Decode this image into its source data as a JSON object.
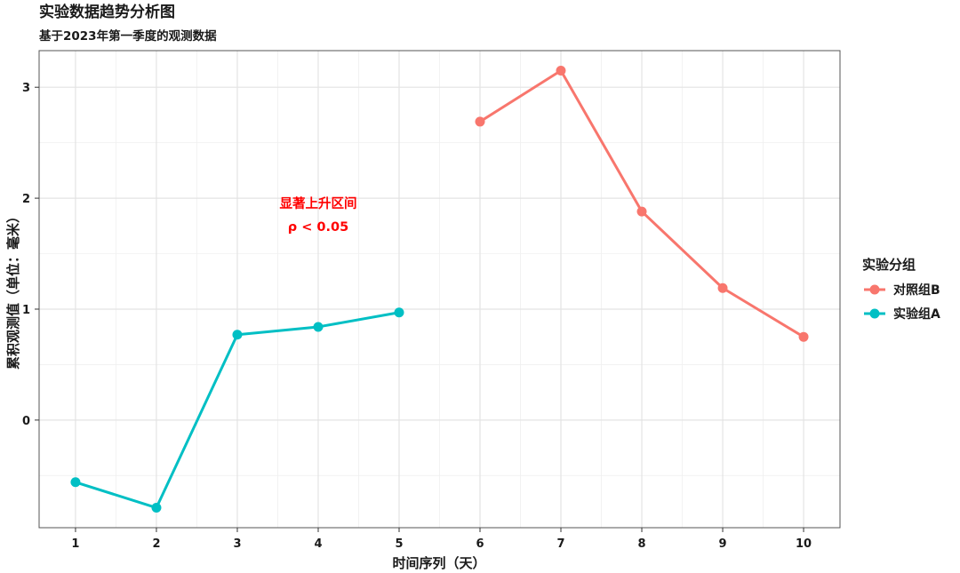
{
  "chart_data": {
    "type": "line",
    "title": "实验数据趋势分析图",
    "subtitle": "基于2023年第一季度的观测数据",
    "xlabel": "时间序列（天）",
    "ylabel": "累积观测值（单位：毫米）",
    "x_ticks": [
      "1",
      "2",
      "3",
      "4",
      "5",
      "6",
      "7",
      "8",
      "9",
      "10"
    ],
    "y_ticks": [
      "0",
      "1",
      "2",
      "3"
    ],
    "xlim": [
      0.55,
      10.45
    ],
    "ylim": [
      -0.97,
      3.33
    ],
    "grid": true,
    "legend": {
      "title": "实验分组",
      "position": "right",
      "entries": [
        "对照组B",
        "实验组A"
      ]
    },
    "series": [
      {
        "name": "实验组A",
        "color": "#00BFC4",
        "x": [
          1,
          2,
          3,
          4,
          5
        ],
        "y": [
          -0.56,
          -0.79,
          0.77,
          0.84,
          0.97
        ]
      },
      {
        "name": "对照组B",
        "color": "#F8766D",
        "x": [
          6,
          7,
          8,
          9,
          10
        ],
        "y": [
          2.69,
          3.15,
          1.88,
          1.19,
          0.75
        ]
      }
    ],
    "annotation": {
      "lines": [
        "显著上升区间",
        "ρ < 0.05"
      ],
      "x": 4,
      "y": 1.85,
      "color": "#FF0000"
    }
  }
}
